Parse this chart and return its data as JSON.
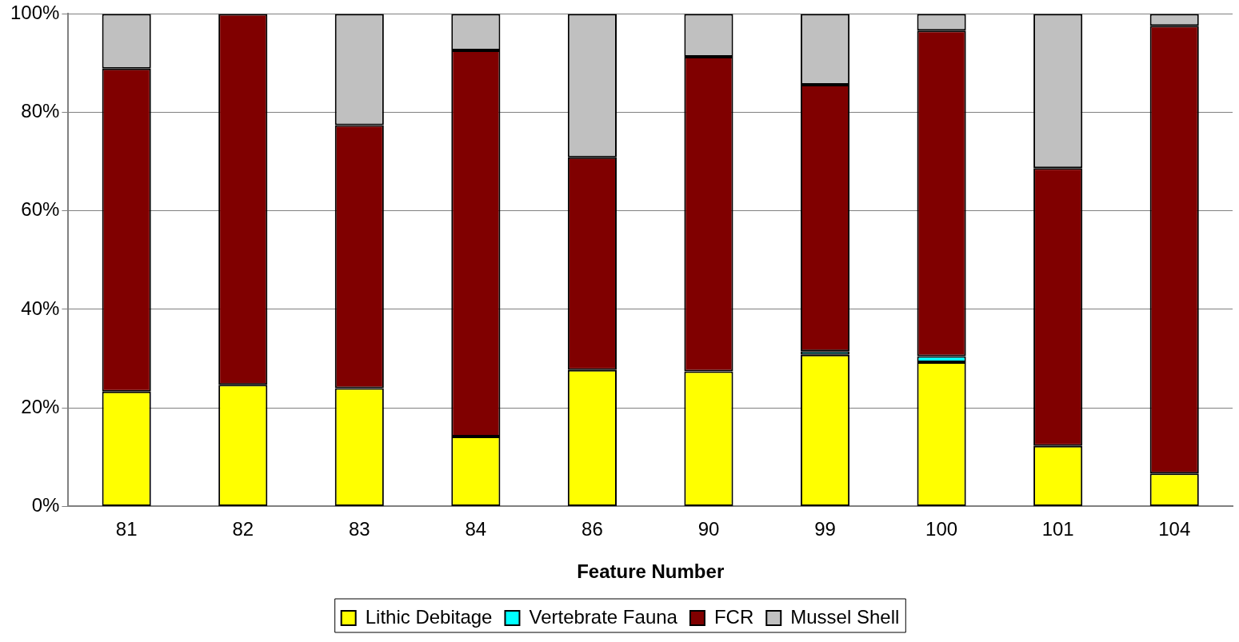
{
  "chart_data": {
    "type": "bar",
    "stacked": true,
    "xlabel": "Feature Number",
    "categories": [
      "81",
      "82",
      "83",
      "84",
      "86",
      "90",
      "99",
      "100",
      "101",
      "104"
    ],
    "series": [
      {
        "name": "Lithic Debitage",
        "color": "#ffff00",
        "values": [
          23.3,
          24.7,
          24.0,
          14.2,
          27.7,
          27.4,
          30.8,
          29.3,
          12.3,
          6.7
        ]
      },
      {
        "name": "Vertebrate Fauna",
        "color": "#00ffff",
        "values": [
          0,
          0,
          0,
          0,
          0,
          0,
          0.7,
          1.2,
          0,
          0
        ]
      },
      {
        "name": "FCR",
        "color": "#800000",
        "values": [
          65.6,
          75.3,
          53.4,
          78.4,
          43.2,
          63.9,
          54.1,
          66.1,
          56.4,
          90.9
        ]
      },
      {
        "name": "Mussel Shell",
        "color": "#c0c0c0",
        "values": [
          11.1,
          0,
          22.6,
          7.4,
          29.1,
          8.7,
          14.4,
          3.4,
          31.3,
          2.4
        ]
      }
    ],
    "ylim": [
      0,
      100
    ],
    "yticks": [
      {
        "value": 0,
        "label": "0%"
      },
      {
        "value": 20,
        "label": "20%"
      },
      {
        "value": 40,
        "label": "40%"
      },
      {
        "value": 60,
        "label": "60%"
      },
      {
        "value": 80,
        "label": "80%"
      },
      {
        "value": 100,
        "label": "100%"
      }
    ],
    "grid": "y",
    "legend": "bottom"
  }
}
